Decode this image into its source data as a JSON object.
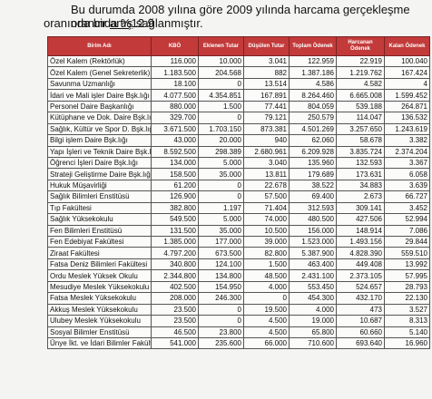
{
  "intro": {
    "line1": "Bu durumda 2008 yılına göre 2009 yılında harcama gerçekleşme oranında %12.9",
    "line2_a": "oranında bir ",
    "line2_u": "artış",
    "line2_b": " sağlanmıştır."
  },
  "table": {
    "headers": [
      "Birim Adı",
      "KBÖ",
      "Eklenen Tutar",
      "Düşülen Tutar",
      "Toplam Ödenek",
      "Harcanan Ödenek",
      "Kalan Ödenek"
    ],
    "header_color": "#c23a3a",
    "rows": [
      [
        "Özel Kalem (Rektörlük)",
        "116.000",
        "10.000",
        "3.041",
        "122.959",
        "22.919",
        "100.040"
      ],
      [
        "Özel Kalem (Genel Sekreterlik)",
        "1.183.500",
        "204.568",
        "882",
        "1.387.186",
        "1.219.762",
        "167.424"
      ],
      [
        "Savunma Uzmanlığı",
        "18.100",
        "0",
        "13.514",
        "4.586",
        "4.582",
        "4"
      ],
      [
        "İdari ve Mali işler Daire Bşk.lığı",
        "4.077.500",
        "4.354.851",
        "167.891",
        "8.264.460",
        "6.665.008",
        "1.599.452"
      ],
      [
        "Personel Daire Başkanlığı",
        "880.000",
        "1.500",
        "77.441",
        "804.059",
        "539.188",
        "264.871"
      ],
      [
        "Kütüphane ve Dok. Daire Bşk.lığı",
        "329.700",
        "0",
        "79.121",
        "250.579",
        "114.047",
        "136.532"
      ],
      [
        "Sağlık, Kültür ve Spor D. Bşk.lığı",
        "3.671.500",
        "1.703.150",
        "873.381",
        "4.501.269",
        "3.257.650",
        "1.243.619"
      ],
      [
        "Bilgi işlem Daire Bşk.lığı",
        "43.000",
        "20.000",
        "940",
        "62.060",
        "58.678",
        "3.382"
      ],
      [
        "Yapı İşleri ve Teknik Daire Bşk.lığı",
        "8.592.500",
        "298.389",
        "2.680.961",
        "6.209.928",
        "3.835.724",
        "2.374.204"
      ],
      [
        "Öğrenci İşleri Daire Bşk.lığı",
        "134.000",
        "5.000",
        "3.040",
        "135.960",
        "132.593",
        "3.367"
      ],
      [
        "Strateji Geliştirme Daire Bşk.lığı",
        "158.500",
        "35.000",
        "13.811",
        "179.689",
        "173.631",
        "6.058"
      ],
      [
        "Hukuk Müşavirliği",
        "61.200",
        "0",
        "22.678",
        "38.522",
        "34.883",
        "3.639"
      ],
      [
        "Sağlık Bilimleri Enstitüsü",
        "126.900",
        "0",
        "57.500",
        "69.400",
        "2.673",
        "66.727"
      ],
      [
        "Tıp Fakültesi",
        "382.800",
        "1.197",
        "71.404",
        "312.593",
        "309.141",
        "3.452"
      ],
      [
        "Sağlık Yüksekokulu",
        "549.500",
        "5.000",
        "74.000",
        "480.500",
        "427.506",
        "52.994"
      ],
      [
        "Fen Bilimleri Enstitüsü",
        "131.500",
        "35.000",
        "10.500",
        "156.000",
        "148.914",
        "7.086"
      ],
      [
        "Fen Edebiyat Fakültesi",
        "1.385.000",
        "177.000",
        "39.000",
        "1.523.000",
        "1.493.156",
        "29.844"
      ],
      [
        "Ziraat Fakültesi",
        "4.797.200",
        "673.500",
        "82.800",
        "5.387.900",
        "4.828.390",
        "559.510"
      ],
      [
        "Fatsa Deniz Bilimleri Fakültesi",
        "340.800",
        "124.100",
        "1.500",
        "463.400",
        "449.408",
        "13.992"
      ],
      [
        "Ordu Meslek Yüksek Okulu",
        "2.344.800",
        "134.800",
        "48.500",
        "2.431.100",
        "2.373.105",
        "57.995"
      ],
      [
        "Mesudiye Meslek Yüksekokulu",
        "402.500",
        "154.950",
        "4.000",
        "553.450",
        "524.657",
        "28.793"
      ],
      [
        "Fatsa Meslek Yüksekokulu",
        "208.000",
        "246.300",
        "0",
        "454.300",
        "432.170",
        "22.130"
      ],
      [
        "Akkuş Meslek Yüksekokulu",
        "23.500",
        "0",
        "19.500",
        "4.000",
        "473",
        "3.527"
      ],
      [
        "Ulubey Meslek Yüksekokulu",
        "23.500",
        "0",
        "4.500",
        "19.000",
        "10.687",
        "8.313"
      ],
      [
        "Sosyal Bilimler Enstitüsü",
        "46.500",
        "23.800",
        "4.500",
        "65.800",
        "60.660",
        "5.140"
      ],
      [
        "Ünye İkt. ve İdari Bilimler Fakültesi",
        "541.000",
        "235.600",
        "66.000",
        "710.600",
        "693.640",
        "16.960"
      ]
    ]
  }
}
